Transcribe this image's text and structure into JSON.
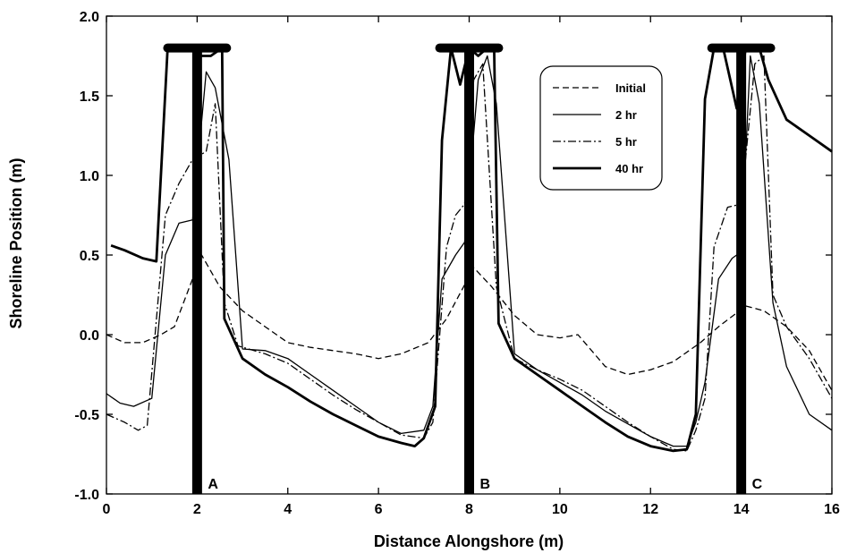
{
  "chart_data": {
    "type": "line",
    "title": "",
    "xlabel": "Distance Alongshore (m)",
    "ylabel": "Shoreline Position (m)",
    "xlim": [
      0,
      16
    ],
    "ylim": [
      -1.0,
      2.0
    ],
    "x_ticks": [
      "0",
      "2",
      "4",
      "6",
      "8",
      "10",
      "12",
      "14",
      "16"
    ],
    "y_ticks": [
      "-1.0",
      "-0.5",
      "0.0",
      "0.5",
      "1.0",
      "1.5",
      "2.0"
    ],
    "grid": false,
    "legend_position": "top-right",
    "series": [
      {
        "name": "Initial",
        "style": "dashed",
        "x": [
          0,
          0.4,
          0.8,
          1.2,
          1.5,
          2.1,
          2.5,
          3.0,
          3.5,
          4.0,
          4.5,
          5.0,
          5.5,
          6.0,
          6.5,
          7.1,
          7.5,
          8.1,
          8.5,
          9.0,
          9.5,
          10.0,
          10.4,
          11.0,
          11.5,
          12.0,
          12.5,
          13.1,
          13.5,
          14.1,
          14.5,
          15.0,
          15.5,
          16.0
        ],
        "y": [
          0.0,
          -0.05,
          -0.05,
          0.0,
          0.05,
          0.5,
          0.3,
          0.15,
          0.05,
          -0.05,
          -0.08,
          -0.1,
          -0.12,
          -0.15,
          -0.12,
          -0.05,
          0.1,
          0.42,
          0.3,
          0.12,
          0.0,
          -0.02,
          0.0,
          -0.2,
          -0.25,
          -0.22,
          -0.17,
          -0.05,
          0.05,
          0.18,
          0.15,
          0.05,
          -0.1,
          -0.35
        ]
      },
      {
        "name": "2 hr",
        "style": "solid",
        "x": [
          0,
          0.3,
          0.6,
          1.0,
          1.3,
          1.6,
          1.9,
          2.2,
          2.4,
          2.7,
          3.0,
          3.5,
          4.0,
          4.5,
          5.0,
          5.5,
          6.0,
          6.5,
          7.0,
          7.2,
          7.4,
          7.7,
          7.9,
          8.2,
          8.4,
          8.6,
          9.0,
          9.5,
          10.0,
          10.5,
          11.0,
          11.5,
          12.0,
          12.5,
          12.8,
          13.0,
          13.2,
          13.5,
          13.8,
          14.0,
          14.2,
          14.4,
          14.7,
          15.0,
          15.5,
          16.0
        ],
        "y": [
          -0.37,
          -0.43,
          -0.45,
          -0.4,
          0.5,
          0.7,
          0.72,
          1.65,
          1.55,
          1.1,
          -0.09,
          -0.1,
          -0.15,
          -0.25,
          -0.35,
          -0.45,
          -0.55,
          -0.62,
          -0.6,
          -0.45,
          0.35,
          0.5,
          0.58,
          1.6,
          1.75,
          1.45,
          -0.12,
          -0.22,
          -0.3,
          -0.38,
          -0.48,
          -0.56,
          -0.64,
          -0.7,
          -0.7,
          -0.55,
          -0.3,
          0.35,
          0.48,
          0.52,
          1.75,
          1.45,
          0.2,
          -0.2,
          -0.5,
          -0.6
        ]
      },
      {
        "name": "5 hr",
        "style": "dashdot",
        "x": [
          0,
          0.4,
          0.7,
          0.9,
          1.3,
          1.6,
          1.9,
          2.2,
          2.4,
          2.6,
          2.9,
          3.5,
          4.0,
          4.5,
          5.0,
          5.5,
          6.0,
          6.5,
          7.0,
          7.2,
          7.5,
          7.7,
          7.9,
          8.1,
          8.3,
          8.6,
          9.0,
          9.5,
          10.0,
          10.5,
          11.0,
          11.5,
          12.0,
          12.5,
          12.8,
          13.0,
          13.2,
          13.4,
          13.7,
          14.0,
          14.3,
          14.5,
          14.7,
          15.0,
          15.5,
          16.0
        ],
        "y": [
          -0.5,
          -0.55,
          -0.6,
          -0.57,
          0.75,
          0.95,
          1.1,
          1.15,
          1.45,
          0.2,
          -0.07,
          -0.12,
          -0.18,
          -0.28,
          -0.38,
          -0.47,
          -0.55,
          -0.63,
          -0.65,
          -0.55,
          0.55,
          0.75,
          0.82,
          1.6,
          1.7,
          0.3,
          -0.15,
          -0.22,
          -0.28,
          -0.35,
          -0.45,
          -0.55,
          -0.64,
          -0.72,
          -0.73,
          -0.6,
          -0.4,
          0.55,
          0.8,
          0.82,
          1.7,
          1.75,
          0.25,
          0.05,
          -0.15,
          -0.4
        ]
      },
      {
        "name": "40 hr",
        "style": "solid-thick",
        "x": [
          0.1,
          0.4,
          0.8,
          1.1,
          1.35,
          1.55,
          1.8,
          2.1,
          2.3,
          2.55,
          2.6,
          3.0,
          3.5,
          4.0,
          4.5,
          5.0,
          5.5,
          6.0,
          6.5,
          6.8,
          7.0,
          7.25,
          7.4,
          7.6,
          7.8,
          8.0,
          8.2,
          8.4,
          8.55,
          8.65,
          9.0,
          9.5,
          10.0,
          10.5,
          11.0,
          11.5,
          12.0,
          12.5,
          12.8,
          13.0,
          13.2,
          13.4,
          13.6,
          13.9,
          14.1,
          14.3,
          14.4,
          14.6,
          15.0,
          15.5,
          16.0
        ],
        "y": [
          0.56,
          0.53,
          0.48,
          0.46,
          1.8,
          1.8,
          1.8,
          1.75,
          1.75,
          1.8,
          0.1,
          -0.15,
          -0.25,
          -0.33,
          -0.42,
          -0.5,
          -0.57,
          -0.64,
          -0.68,
          -0.7,
          -0.65,
          -0.45,
          1.22,
          1.8,
          1.57,
          1.8,
          1.75,
          1.8,
          1.8,
          0.07,
          -0.15,
          -0.25,
          -0.35,
          -0.45,
          -0.55,
          -0.64,
          -0.7,
          -0.73,
          -0.72,
          -0.5,
          1.48,
          1.8,
          1.8,
          1.42,
          1.8,
          1.8,
          1.8,
          1.6,
          1.35,
          1.25,
          1.15
        ]
      }
    ],
    "structures": [
      {
        "label": "A",
        "x": 2,
        "head_x": [
          1.35,
          2.65
        ],
        "head_y": 1.8
      },
      {
        "label": "B",
        "x": 8,
        "head_x": [
          7.35,
          8.65
        ],
        "head_y": 1.8
      },
      {
        "label": "C",
        "x": 14,
        "head_x": [
          13.35,
          14.65
        ],
        "head_y": 1.8
      }
    ]
  }
}
